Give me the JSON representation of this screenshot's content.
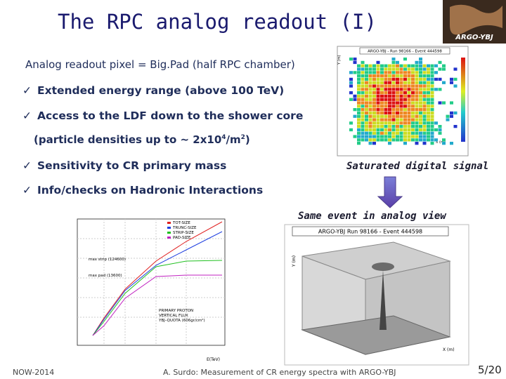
{
  "title": "The RPC analog readout (I)",
  "logo": "ARGO-YBJ",
  "subtitle": "Analog readout pixel = Big.Pad (half RPC chamber)",
  "bullets": [
    "Extended energy range (above 100 TeV)",
    "Access to the LDF down to the shower core",
    "Sensitivity to CR primary mass",
    "Info/checks on Hadronic Interactions"
  ],
  "density_note": {
    "start": "(particle densities up to ~ 2x10",
    "sup1": "4",
    "mid": "/m",
    "sup2": "2",
    "end": ")"
  },
  "captions": {
    "digital": "Saturated digital signal",
    "analog": "Same event in analog view"
  },
  "digital_plot": {
    "header": "ARGO-YBJ  -  Run 98166  -  Event 444598",
    "ylabel": "Y (m)",
    "xlabel": "X (m)"
  },
  "analog_plot": {
    "header": "ARGO-YBJ     Run 98166  -  Event 444598",
    "ylabel": "Y (m)",
    "xlabel": "X (m)"
  },
  "size_plot": {
    "legend": [
      "TOT-SIZE",
      "TRUNC-SIZE",
      "STRIP-SIZE",
      "PAD-SIZE"
    ],
    "max_strip": "max strip (124600)",
    "max_pad": "max pad (13600)",
    "note": [
      "PRIMARY PROTON",
      "VERTICAL FLUX",
      "YBJ–QUOTA (606gr/cm²)"
    ],
    "xlabel": "E(TeV)"
  },
  "footer": {
    "left": "NOW-2014",
    "center": "A. Surdo: Measurement of CR energy spectra with ARGO-YBJ",
    "page": "5/20"
  }
}
